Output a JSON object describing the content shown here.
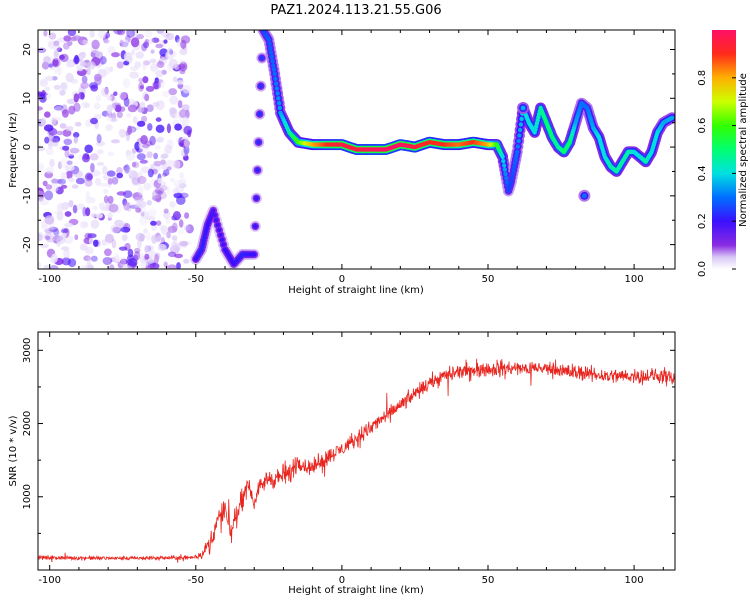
{
  "figure": {
    "title": "PAZ1.2024.113.21.55.G06"
  },
  "chart_data": [
    {
      "type": "heatmap",
      "title": "PAZ1.2024.113.21.55.G06",
      "xlabel": "Height of straight line (km)",
      "ylabel": "Frequency (Hz)",
      "xlim": [
        -104,
        114
      ],
      "ylim": [
        -25,
        24
      ],
      "x_ticks": [
        -100,
        -50,
        0,
        50,
        100
      ],
      "y_ticks": [
        -20,
        -10,
        0,
        10,
        20
      ],
      "x_tick_labels": [
        "-100",
        "-50",
        "0",
        "50",
        "100"
      ],
      "y_tick_labels": [
        "-20",
        "-10",
        "0",
        "10",
        "20"
      ],
      "colorbar": {
        "label": "Normalized spectral amplitude",
        "range": [
          0,
          1
        ],
        "ticks": [
          0.0,
          0.2,
          0.4,
          0.6,
          0.8
        ],
        "tick_labels": [
          "0.0",
          "0.2",
          "0.4",
          "0.6",
          "0.8"
        ],
        "colormap": "gist_rainbow"
      },
      "ridge": {
        "x": [
          -50,
          -48,
          -46,
          -44,
          -40,
          -37,
          -34,
          -30,
          -27,
          -25,
          -23,
          -21,
          -18,
          -15,
          -10,
          -5,
          0,
          5,
          10,
          15,
          20,
          25,
          30,
          35,
          40,
          45,
          50,
          53,
          55,
          57,
          58,
          60,
          62,
          64,
          66,
          68,
          70,
          72,
          74,
          76,
          78,
          80,
          82,
          84,
          86,
          88,
          90,
          92,
          94,
          96,
          98,
          100,
          102,
          104,
          106,
          108,
          110,
          113
        ],
        "y": [
          -23,
          -21,
          -16,
          -13,
          -21,
          -24,
          -22,
          -22,
          24,
          22,
          15,
          7,
          3,
          1,
          0.5,
          0.5,
          0.5,
          -0.5,
          -0.5,
          -0.5,
          0.5,
          0,
          1,
          0.5,
          0.5,
          1,
          0.5,
          0.5,
          -2,
          -9,
          -7,
          -1,
          8,
          5,
          3,
          8,
          5,
          2,
          0,
          -1,
          1,
          5,
          9,
          8,
          4,
          2,
          -2,
          -4,
          -5,
          -3,
          -1,
          -1,
          -2,
          -3,
          -1,
          3,
          5,
          6
        ],
        "amplitude": [
          0.2,
          0.22,
          0.2,
          0.18,
          0.2,
          0.2,
          0.22,
          0.2,
          0.25,
          0.28,
          0.3,
          0.35,
          0.45,
          0.6,
          0.8,
          0.9,
          0.95,
          0.95,
          0.98,
          1.0,
          1.0,
          0.95,
          0.9,
          0.9,
          0.85,
          0.9,
          0.8,
          0.6,
          0.4,
          0.25,
          0.25,
          0.3,
          0.4,
          0.4,
          0.4,
          0.45,
          0.5,
          0.5,
          0.45,
          0.5,
          0.5,
          0.35,
          0.3,
          0.3,
          0.35,
          0.4,
          0.4,
          0.45,
          0.45,
          0.45,
          0.45,
          0.4,
          0.4,
          0.45,
          0.4,
          0.4,
          0.35,
          0.35
        ]
      },
      "isolated_blobs": [
        {
          "x": 83,
          "y": -10,
          "amplitude": 0.3
        },
        {
          "x": 62,
          "y": 8,
          "amplitude": 0.35
        }
      ],
      "noise_region": {
        "x_range": [
          -104,
          -52
        ],
        "y_range": [
          -25,
          24
        ],
        "amplitude_range": [
          0.02,
          0.2
        ]
      }
    },
    {
      "type": "line",
      "xlabel": "Height of straight line (km)",
      "ylabel": "SNR (10 * v/v)",
      "xlim": [
        -104,
        114
      ],
      "ylim": [
        0,
        3250
      ],
      "x_ticks": [
        -100,
        -50,
        0,
        50,
        100
      ],
      "y_ticks": [
        1000,
        2000,
        3000
      ],
      "x_tick_labels": [
        "-100",
        "-50",
        "0",
        "50",
        "100"
      ],
      "y_tick_labels": [
        "1000",
        "2000",
        "3000"
      ],
      "series": [
        {
          "color": "#e8241e",
          "x": [
            -104,
            -90,
            -75,
            -60,
            -52,
            -48,
            -45,
            -42,
            -40,
            -38,
            -35,
            -32,
            -30,
            -28,
            -25,
            -22,
            -20,
            -18,
            -15,
            -12,
            -10,
            -5,
            0,
            5,
            10,
            15,
            20,
            25,
            30,
            35,
            40,
            50,
            60,
            70,
            80,
            90,
            100,
            110,
            114
          ],
          "mean": [
            170,
            165,
            160,
            165,
            170,
            200,
            400,
            700,
            800,
            500,
            900,
            1200,
            900,
            1150,
            1250,
            1250,
            1300,
            1300,
            1500,
            1400,
            1400,
            1550,
            1650,
            1800,
            1950,
            2100,
            2250,
            2400,
            2550,
            2650,
            2700,
            2750,
            2750,
            2750,
            2700,
            2650,
            2650,
            2650,
            2600
          ],
          "spread": [
            40,
            40,
            40,
            40,
            40,
            60,
            200,
            300,
            300,
            250,
            250,
            200,
            150,
            150,
            200,
            200,
            250,
            250,
            200,
            150,
            150,
            150,
            150,
            150,
            150,
            150,
            150,
            150,
            150,
            150,
            150,
            150,
            150,
            150,
            150,
            150,
            150,
            150,
            150
          ]
        }
      ]
    }
  ]
}
